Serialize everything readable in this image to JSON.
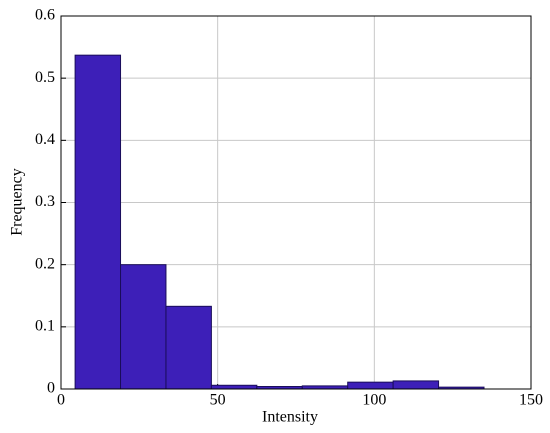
{
  "chart_data": {
    "type": "histogram",
    "xlabel": "Intensity",
    "ylabel": "Frequency",
    "bins": [
      4.5,
      19,
      33.5,
      48,
      62.5,
      77,
      91.5,
      106,
      120.5,
      135
    ],
    "values": [
      0.537,
      0.2,
      0.133,
      0.006,
      0.004,
      0.005,
      0.011,
      0.013,
      0.003
    ],
    "color": "#3d1fb8",
    "xlim": [
      0,
      150
    ],
    "xticks": [
      0,
      50,
      100,
      150
    ],
    "ylim": [
      0,
      0.6
    ],
    "yticks": [
      0,
      0.1,
      0.2,
      0.3,
      0.4,
      0.5,
      0.6
    ],
    "grid": true
  }
}
